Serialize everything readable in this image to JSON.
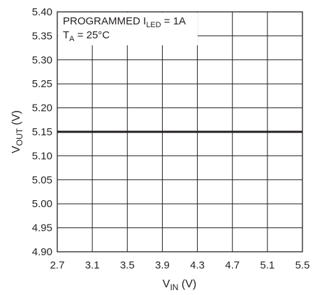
{
  "chart_data": {
    "type": "line",
    "xlabel": {
      "main": "V",
      "sub": "IN",
      "unit": " (V)"
    },
    "ylabel": {
      "main": "V",
      "sub": "OUT",
      "unit": " (V)"
    },
    "xlim": [
      2.7,
      5.5
    ],
    "ylim": [
      4.9,
      5.4
    ],
    "x_ticks": [
      "2.7",
      "3.1",
      "3.5",
      "3.9",
      "4.3",
      "4.7",
      "5.1",
      "5.5"
    ],
    "y_ticks": [
      "5.40",
      "5.35",
      "5.30",
      "5.25",
      "5.20",
      "5.15",
      "5.10",
      "5.05",
      "5.00",
      "4.95",
      "4.90"
    ],
    "grid": true,
    "annotations": {
      "line1": {
        "pre": "PROGRAMMED I",
        "sub": "LED",
        "post": " = 1A"
      },
      "line2": {
        "pre": "T",
        "sub": "A",
        "post": " = 25°C"
      }
    },
    "series": [
      {
        "x": [
          2.7,
          5.5
        ],
        "y": [
          5.15,
          5.15
        ]
      }
    ]
  }
}
